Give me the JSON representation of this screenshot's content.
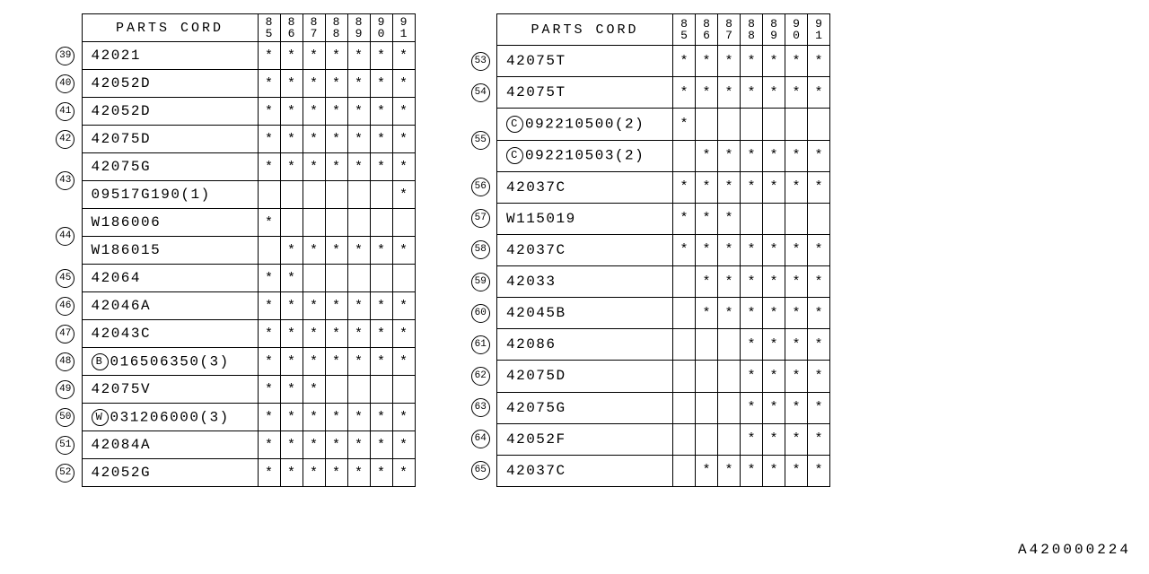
{
  "header": "PARTS CORD",
  "years": [
    "85",
    "86",
    "87",
    "88",
    "89",
    "90",
    "91"
  ],
  "footer_code": "A420000224",
  "star": "*",
  "tableA": [
    {
      "idx": "39",
      "span": 1,
      "part": "42021",
      "prefix": "",
      "marks": [
        1,
        1,
        1,
        1,
        1,
        1,
        1
      ]
    },
    {
      "idx": "40",
      "span": 1,
      "part": "42052D",
      "prefix": "",
      "marks": [
        1,
        1,
        1,
        1,
        1,
        1,
        1
      ]
    },
    {
      "idx": "41",
      "span": 1,
      "part": "42052D",
      "prefix": "",
      "marks": [
        1,
        1,
        1,
        1,
        1,
        1,
        1
      ]
    },
    {
      "idx": "42",
      "span": 1,
      "part": "42075D",
      "prefix": "",
      "marks": [
        1,
        1,
        1,
        1,
        1,
        1,
        1
      ]
    },
    {
      "idx": "43",
      "span": 2,
      "part": "42075G",
      "prefix": "",
      "marks": [
        1,
        1,
        1,
        1,
        1,
        1,
        1
      ]
    },
    {
      "idx": "",
      "span": 0,
      "part": "09517G190(1)",
      "prefix": "",
      "marks": [
        0,
        0,
        0,
        0,
        0,
        0,
        1
      ]
    },
    {
      "idx": "44",
      "span": 2,
      "part": "W186006",
      "prefix": "",
      "marks": [
        1,
        0,
        0,
        0,
        0,
        0,
        0
      ]
    },
    {
      "idx": "",
      "span": 0,
      "part": "W186015",
      "prefix": "",
      "marks": [
        0,
        1,
        1,
        1,
        1,
        1,
        1
      ]
    },
    {
      "idx": "45",
      "span": 1,
      "part": "42064",
      "prefix": "",
      "marks": [
        1,
        1,
        0,
        0,
        0,
        0,
        0
      ]
    },
    {
      "idx": "46",
      "span": 1,
      "part": "42046A",
      "prefix": "",
      "marks": [
        1,
        1,
        1,
        1,
        1,
        1,
        1
      ]
    },
    {
      "idx": "47",
      "span": 1,
      "part": "42043C",
      "prefix": "",
      "marks": [
        1,
        1,
        1,
        1,
        1,
        1,
        1
      ]
    },
    {
      "idx": "48",
      "span": 1,
      "part": "016506350(3)",
      "prefix": "B",
      "marks": [
        1,
        1,
        1,
        1,
        1,
        1,
        1
      ]
    },
    {
      "idx": "49",
      "span": 1,
      "part": "42075V",
      "prefix": "",
      "marks": [
        1,
        1,
        1,
        0,
        0,
        0,
        0
      ]
    },
    {
      "idx": "50",
      "span": 1,
      "part": "031206000(3)",
      "prefix": "W",
      "marks": [
        1,
        1,
        1,
        1,
        1,
        1,
        1
      ]
    },
    {
      "idx": "51",
      "span": 1,
      "part": "42084A",
      "prefix": "",
      "marks": [
        1,
        1,
        1,
        1,
        1,
        1,
        1
      ]
    },
    {
      "idx": "52",
      "span": 1,
      "part": "42052G",
      "prefix": "",
      "marks": [
        1,
        1,
        1,
        1,
        1,
        1,
        1
      ]
    }
  ],
  "tableB": [
    {
      "idx": "53",
      "span": 1,
      "part": "42075T",
      "prefix": "",
      "marks": [
        1,
        1,
        1,
        1,
        1,
        1,
        1
      ]
    },
    {
      "idx": "54",
      "span": 1,
      "part": "42075T",
      "prefix": "",
      "marks": [
        1,
        1,
        1,
        1,
        1,
        1,
        1
      ]
    },
    {
      "idx": "55",
      "span": 2,
      "part": "092210500(2)",
      "prefix": "C",
      "marks": [
        1,
        0,
        0,
        0,
        0,
        0,
        0
      ]
    },
    {
      "idx": "",
      "span": 0,
      "part": "092210503(2)",
      "prefix": "C",
      "marks": [
        0,
        1,
        1,
        1,
        1,
        1,
        1
      ]
    },
    {
      "idx": "56",
      "span": 1,
      "part": "42037C",
      "prefix": "",
      "marks": [
        1,
        1,
        1,
        1,
        1,
        1,
        1
      ]
    },
    {
      "idx": "57",
      "span": 1,
      "part": "W115019",
      "prefix": "",
      "marks": [
        1,
        1,
        1,
        0,
        0,
        0,
        0
      ]
    },
    {
      "idx": "58",
      "span": 1,
      "part": "42037C",
      "prefix": "",
      "marks": [
        1,
        1,
        1,
        1,
        1,
        1,
        1
      ]
    },
    {
      "idx": "59",
      "span": 1,
      "part": "42033",
      "prefix": "",
      "marks": [
        0,
        1,
        1,
        1,
        1,
        1,
        1
      ]
    },
    {
      "idx": "60",
      "span": 1,
      "part": "42045B",
      "prefix": "",
      "marks": [
        0,
        1,
        1,
        1,
        1,
        1,
        1
      ]
    },
    {
      "idx": "61",
      "span": 1,
      "part": "42086",
      "prefix": "",
      "marks": [
        0,
        0,
        0,
        1,
        1,
        1,
        1
      ]
    },
    {
      "idx": "62",
      "span": 1,
      "part": "42075D",
      "prefix": "",
      "marks": [
        0,
        0,
        0,
        1,
        1,
        1,
        1
      ]
    },
    {
      "idx": "63",
      "span": 1,
      "part": "42075G",
      "prefix": "",
      "marks": [
        0,
        0,
        0,
        1,
        1,
        1,
        1
      ]
    },
    {
      "idx": "64",
      "span": 1,
      "part": "42052F",
      "prefix": "",
      "marks": [
        0,
        0,
        0,
        1,
        1,
        1,
        1
      ]
    },
    {
      "idx": "65",
      "span": 1,
      "part": "42037C",
      "prefix": "",
      "marks": [
        0,
        1,
        1,
        1,
        1,
        1,
        1
      ]
    }
  ]
}
